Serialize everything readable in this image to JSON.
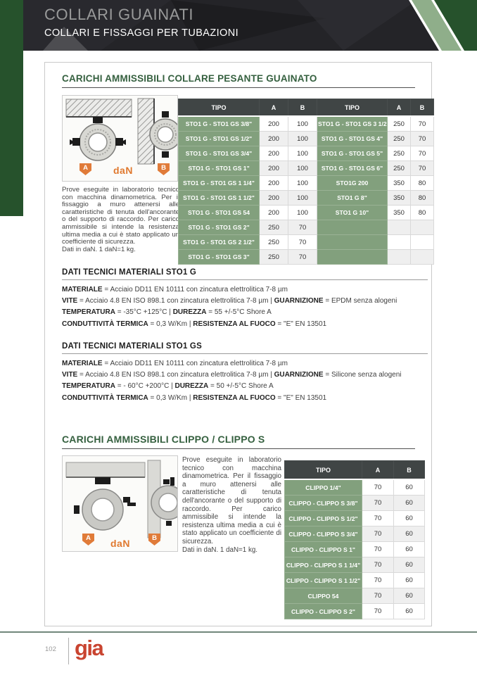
{
  "header": {
    "title": "COLLARI GUAINATI",
    "subtitle": "COLLARI E FISSAGGI PER TUBAZIONI"
  },
  "colors": {
    "accent_green_dark": "#26522c",
    "accent_green_sage": "#8fae8a",
    "table_row_green": "#82a07d",
    "table_header_dark": "#404545",
    "section_title_green": "#35603f",
    "badge_orange": "#e07b39",
    "logo_red": "#c94430"
  },
  "section1": {
    "title": "CARICHI AMMISSIBILI COLLARE PESANTE GUAINATO",
    "figure": {
      "label_a": "A",
      "label_b": "B",
      "unit": "daN"
    },
    "note": "Prove eseguite in laboratorio tecnico con macchina dinamometrica. Per il fissaggio a muro attenersi alle caratteristiche di tenuta dell'ancorante o del supporto di raccordo. Per carico ammissibile si intende la resistenza ultima media a cui è stato applicato un coefficiente di sicurezza.",
    "note2": "Dati in daN. 1 daN=1 kg.",
    "table": {
      "headers": [
        "TIPO",
        "A",
        "B",
        "TIPO",
        "A",
        "B"
      ],
      "rows": [
        [
          "STO1 G - STO1 GS 3/8\"",
          "200",
          "100",
          "STO1 G - STO1 GS 3 1/2\"",
          "250",
          "70"
        ],
        [
          "STO1 G - STO1 GS 1/2\"",
          "200",
          "100",
          "STO1 G - STO1 GS 4\"",
          "250",
          "70"
        ],
        [
          "STO1 G - STO1 GS 3/4\"",
          "200",
          "100",
          "STO1 G - STO1 GS 5\"",
          "250",
          "70"
        ],
        [
          "STO1 G - STO1 GS 1\"",
          "200",
          "100",
          "STO1 G - STO1 GS 6\"",
          "250",
          "70"
        ],
        [
          "STO1 G - STO1 GS 1 1/4\"",
          "200",
          "100",
          "STO1G 200",
          "350",
          "80"
        ],
        [
          "STO1 G - STO1 GS 1 1/2\"",
          "200",
          "100",
          "STO1 G 8\"",
          "350",
          "80"
        ],
        [
          "STO1 G - STO1 GS 54",
          "200",
          "100",
          "STO1 G 10\"",
          "350",
          "80"
        ],
        [
          "STO1 G - STO1 GS 2\"",
          "250",
          "70",
          "",
          "",
          ""
        ],
        [
          "STO1 G - STO1 GS 2 1/2\"",
          "250",
          "70",
          "",
          "",
          ""
        ],
        [
          "STO1 G - STO1 GS 3\"",
          "250",
          "70",
          "",
          "",
          ""
        ]
      ]
    }
  },
  "tech1": {
    "title": "DATI TECNICI MATERIALI STO1 G",
    "lines": [
      [
        {
          "b": 1,
          "t": "MATERIALE"
        },
        {
          "t": " = Acciaio DD11 EN 10111 con zincatura elettrolitica 7-8 µm"
        }
      ],
      [
        {
          "b": 1,
          "t": "VITE"
        },
        {
          "t": " = Acciaio 4.8 EN ISO 898.1 con zincatura elettrolitica 7-8 µm  |  "
        },
        {
          "b": 1,
          "t": "GUARNIZIONE"
        },
        {
          "t": " = EPDM senza alogeni"
        }
      ],
      [
        {
          "b": 1,
          "t": "TEMPERATURA"
        },
        {
          "t": " = -35°C +125°C |  "
        },
        {
          "b": 1,
          "t": "DUREZZA"
        },
        {
          "t": " = 55 +/-5°C Shore A"
        }
      ],
      [
        {
          "b": 1,
          "t": "CONDUTTIVITÀ TERMICA"
        },
        {
          "t": " = 0,3 W/Km  |  "
        },
        {
          "b": 1,
          "t": "RESISTENZA AL FUOCO"
        },
        {
          "t": " = \"E\" EN 13501"
        }
      ]
    ]
  },
  "tech2": {
    "title": "DATI TECNICI MATERIALI STO1 GS",
    "lines": [
      [
        {
          "b": 1,
          "t": "MATERIALE"
        },
        {
          "t": " = Acciaio DD11 EN 10111 con zincatura elettrolitica 7-8 µm"
        }
      ],
      [
        {
          "b": 1,
          "t": "VITE"
        },
        {
          "t": " = Acciaio 4.8 EN ISO 898.1 con zincatura elettrolitica 7-8 µm  |  "
        },
        {
          "b": 1,
          "t": "GUARNIZIONE"
        },
        {
          "t": " = Silicone senza alogeni"
        }
      ],
      [
        {
          "b": 1,
          "t": "TEMPERATURA"
        },
        {
          "t": " = - 60°C +200°C |  "
        },
        {
          "b": 1,
          "t": "DUREZZA"
        },
        {
          "t": " = 50 +/-5°C Shore A"
        }
      ],
      [
        {
          "b": 1,
          "t": "CONDUTTIVITÀ TERMICA"
        },
        {
          "t": " = 0,3 W/Km  |  "
        },
        {
          "b": 1,
          "t": "RESISTENZA AL FUOCO"
        },
        {
          "t": " = \"E\" EN 13501"
        }
      ]
    ]
  },
  "section2": {
    "title": "CARICHI AMMISSIBILI CLIPPO / CLIPPO S",
    "figure": {
      "label_a": "A",
      "label_b": "B",
      "unit": "daN"
    },
    "note": "Prove eseguite in laboratorio tecnico con macchina dinamometrica. Per il fissaggio a muro attenersi alle caratteristiche di tenuta dell'ancorante o del supporto di raccordo. Per carico ammissibile si intende la resistenza ultima media a cui è stato applicato un coefficiente di sicurezza.",
    "note2": "Dati in daN. 1 daN=1 kg.",
    "table": {
      "headers": [
        "TIPO",
        "A",
        "B"
      ],
      "rows": [
        [
          "CLIPPO 1/4\"",
          "70",
          "60"
        ],
        [
          "CLIPPO - CLIPPO S 3/8\"",
          "70",
          "60"
        ],
        [
          "CLIPPO - CLIPPO S 1/2\"",
          "70",
          "60"
        ],
        [
          "CLIPPO - CLIPPO S 3/4\"",
          "70",
          "60"
        ],
        [
          "CLIPPO - CLIPPO S 1\"",
          "70",
          "60"
        ],
        [
          "CLIPPO - CLIPPO S 1 1/4\"",
          "70",
          "60"
        ],
        [
          "CLIPPO - CLIPPO S 1 1/2\"",
          "70",
          "60"
        ],
        [
          "CLIPPO 54",
          "70",
          "60"
        ],
        [
          "CLIPPO - CLIPPO S 2\"",
          "70",
          "60"
        ]
      ]
    }
  },
  "footer": {
    "page_number": "102",
    "logo": "gia"
  }
}
